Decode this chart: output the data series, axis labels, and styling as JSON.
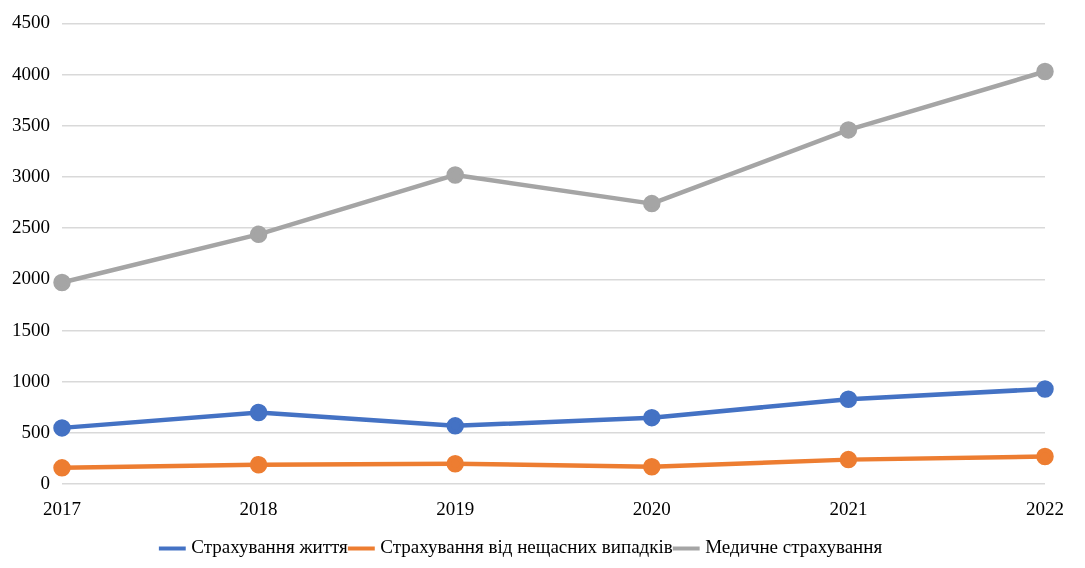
{
  "chart_data": {
    "type": "line",
    "categories": [
      "2017",
      "2018",
      "2019",
      "2020",
      "2021",
      "2022"
    ],
    "series": [
      {
        "name": "Страхування життя",
        "color": "#4472c4",
        "values": [
          550,
          700,
          570,
          650,
          830,
          930
        ]
      },
      {
        "name": "Страхування від нещасних випадків",
        "color": "#ed7d31",
        "values": [
          160,
          190,
          200,
          170,
          240,
          270
        ]
      },
      {
        "name": "Медичне страхування",
        "color": "#a5a5a5",
        "values": [
          1970,
          2440,
          3020,
          2740,
          3460,
          4030
        ]
      }
    ],
    "ylim": [
      0,
      4500
    ],
    "yticks": [
      0,
      500,
      1000,
      1500,
      2000,
      2500,
      3000,
      3500,
      4000,
      4500
    ],
    "grid": "y",
    "legend": "bottom",
    "marker": "circle",
    "line_style": "solid"
  }
}
